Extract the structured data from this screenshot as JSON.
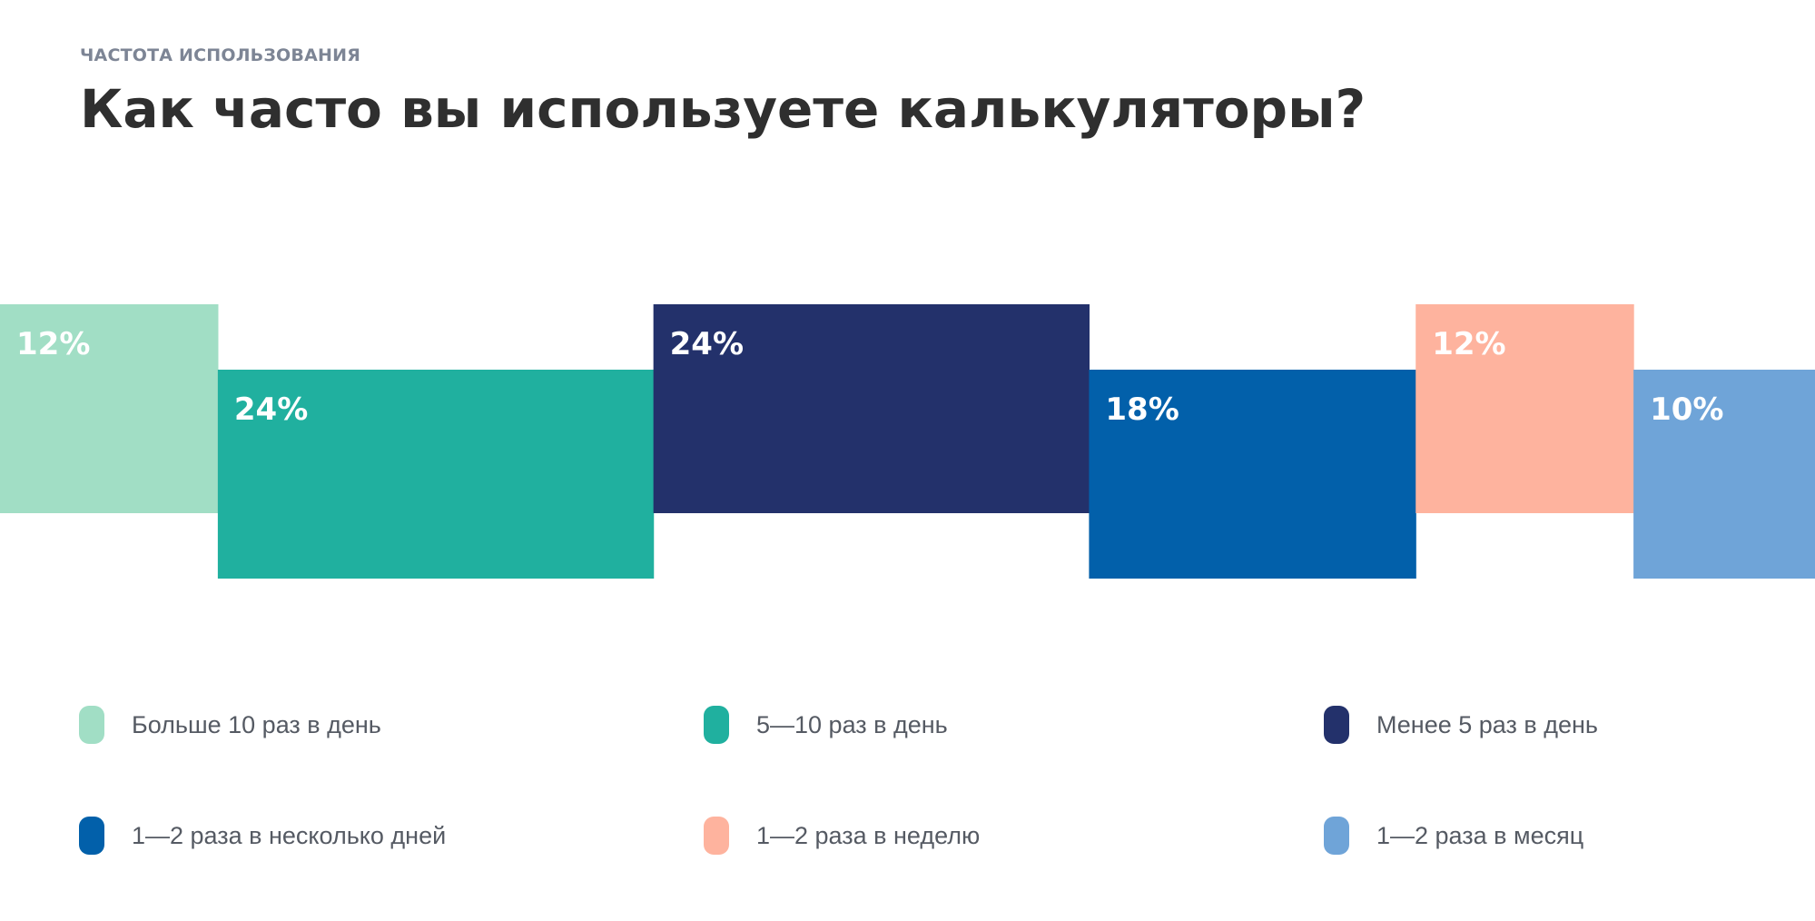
{
  "header": {
    "eyebrow": "ЧАСТОТА ИСПОЛЬЗОВАНИЯ",
    "title": "Как часто вы используете калькуляторы?"
  },
  "chart_data": {
    "type": "bar",
    "title": "Как часто вы используете калькуляторы?",
    "unit": "%",
    "grid": false,
    "legend_placement": "bottom",
    "categories": [
      "Больше 10 раз в день",
      "5—10 раз в день",
      "Менее 5 раз в день",
      "1—2 раза в несколько дней",
      "1—2 раза в неделю",
      "1—2 раза в месяц"
    ],
    "values": [
      12,
      24,
      24,
      18,
      12,
      10
    ],
    "labels": [
      "12%",
      "24%",
      "24%",
      "18%",
      "12%",
      "10%"
    ],
    "colors": [
      "#a1dec5",
      "#20b09f",
      "#23316b",
      "#0260aa",
      "#feb39e",
      "#6fa4d8"
    ]
  }
}
